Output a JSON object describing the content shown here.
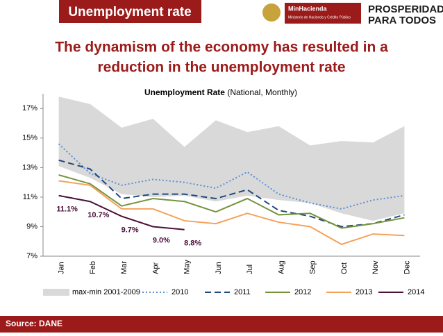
{
  "header": {
    "title": "Unemployment rate",
    "logo1": {
      "name": "MinHacienda",
      "subtitle": "Ministerio de Hacienda y Crédito Público"
    },
    "logo2": {
      "line1": "PROSPERIDAD",
      "line2": "PARA TODOS"
    }
  },
  "headline": {
    "line1": "The dynamism of the economy has resulted in a",
    "line2": "reduction in the unemployment rate"
  },
  "footer": {
    "source": "Source: DANE"
  },
  "chart_data": {
    "type": "line",
    "title": "Unemployment Rate",
    "subtitle": "(National, Monthly)",
    "categories": [
      "Jan",
      "Feb",
      "Mar",
      "Apr",
      "May",
      "Jun",
      "Jul",
      "Aug",
      "Sep",
      "Oct",
      "Nov",
      "Dec"
    ],
    "ylim": [
      7,
      18
    ],
    "yticks": [
      {
        "value": 7,
        "label": "7%"
      },
      {
        "value": 9,
        "label": "9%"
      },
      {
        "value": 11,
        "label": "11%"
      },
      {
        "value": 13,
        "label": "13%"
      },
      {
        "value": 15,
        "label": "15%"
      },
      {
        "value": 17,
        "label": "17%"
      }
    ],
    "series": [
      {
        "name": "max-min 2001-2009",
        "type": "area",
        "color": "#d9d9d9",
        "upper": [
          17.8,
          17.3,
          15.7,
          16.3,
          14.4,
          16.2,
          15.4,
          15.8,
          14.5,
          14.8,
          14.7,
          15.8
        ],
        "lower": [
          13.1,
          12.3,
          11.2,
          11.0,
          11.1,
          10.7,
          11.1,
          10.8,
          10.6,
          9.9,
          9.4,
          9.9
        ]
      },
      {
        "name": "2010",
        "color": "#5b8fd6",
        "dash": "dotted",
        "values": [
          14.6,
          12.6,
          11.8,
          12.2,
          12.0,
          11.6,
          12.7,
          11.2,
          10.6,
          10.2,
          10.8,
          11.1
        ]
      },
      {
        "name": "2011",
        "color": "#1f497d",
        "dash": "dashed",
        "values": [
          13.5,
          12.9,
          10.9,
          11.2,
          11.2,
          10.9,
          11.5,
          10.1,
          9.7,
          9.0,
          9.2,
          9.8
        ]
      },
      {
        "name": "2012",
        "color": "#77933c",
        "values": [
          12.5,
          11.9,
          10.4,
          10.9,
          10.7,
          10.0,
          10.9,
          9.8,
          9.9,
          8.9,
          9.2,
          9.6
        ]
      },
      {
        "name": "2013",
        "color": "#f5a25d",
        "values": [
          12.1,
          11.8,
          10.2,
          10.2,
          9.4,
          9.2,
          9.9,
          9.3,
          9.0,
          7.8,
          8.5,
          8.4
        ]
      },
      {
        "name": "2014",
        "color": "#4b1038",
        "values": [
          11.1,
          10.7,
          9.7,
          9.0,
          8.8,
          null,
          null,
          null,
          null,
          null,
          null,
          null
        ],
        "value_labels": [
          "11.1%",
          "10.7%",
          "9.7%",
          "9.0%",
          "8.8%",
          null,
          null,
          null,
          null,
          null,
          null,
          null
        ]
      }
    ]
  }
}
